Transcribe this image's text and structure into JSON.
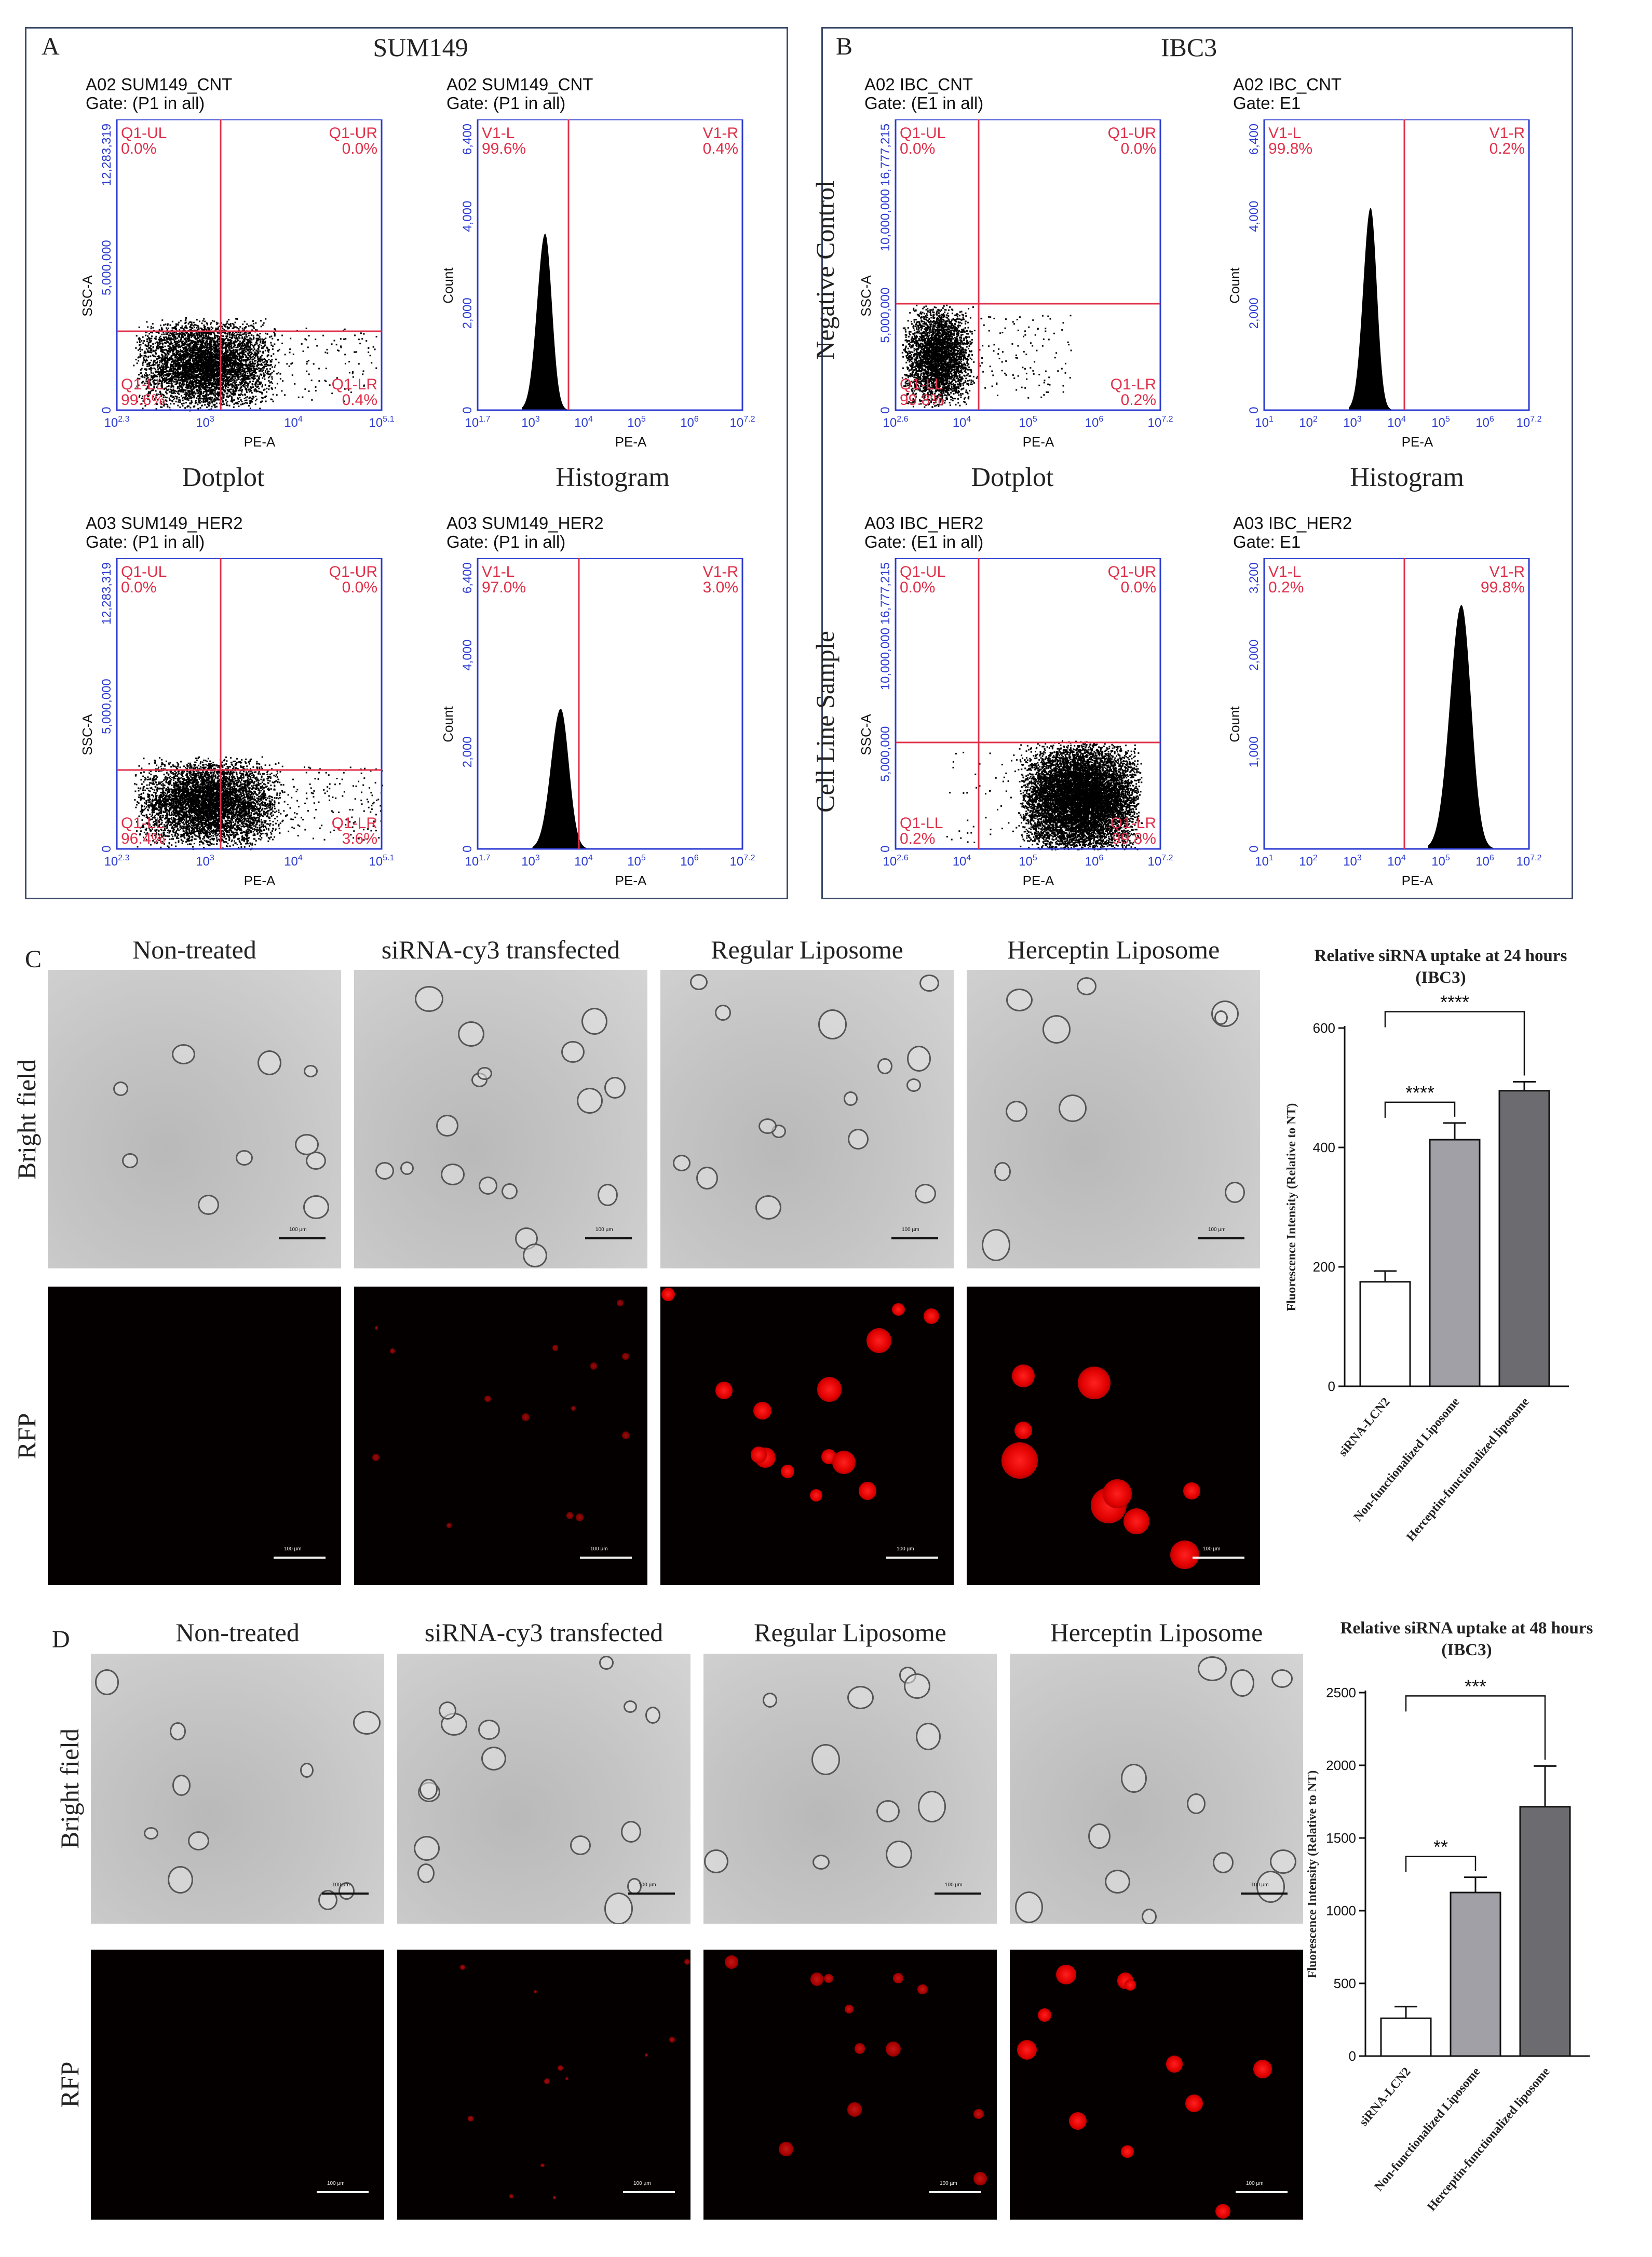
{
  "panelA": {
    "letter": "A",
    "title": "SUM149",
    "dot_top": {
      "name": "A02 SUM149_CNT",
      "gate": "Gate: (P1 in all)",
      "ylabel": "SSC-A",
      "xlabel": "PE-A",
      "yticks": [
        "0",
        "5,000,000",
        "12,283,319"
      ],
      "xticks": [
        "10^2.3",
        "10^3",
        "10^4",
        "10^5.1"
      ],
      "quads": {
        "ul": "Q1-UL",
        "ul_v": "0.0%",
        "ur": "Q1-UR",
        "ur_v": "0.0%",
        "ll": "Q1-LL",
        "ll_v": "99.6%",
        "lr": "Q1-LR",
        "lr_v": "0.4%"
      }
    },
    "hist_top": {
      "name": "A02 SUM149_CNT",
      "gate": "Gate: (P1 in all)",
      "ylabel": "Count",
      "xlabel": "PE-A",
      "yticks": [
        "0",
        "2,000",
        "4,000",
        "6,400"
      ],
      "xticks": [
        "10^1.7",
        "10^3",
        "10^4",
        "10^5",
        "10^6",
        "10^7.2"
      ],
      "left": "V1-L",
      "left_v": "99.6%",
      "right": "V1-R",
      "right_v": "0.4%"
    },
    "dot_bottom": {
      "name": "A03 SUM149_HER2",
      "gate": "Gate: (P1 in all)",
      "ylabel": "SSC-A",
      "xlabel": "PE-A",
      "yticks": [
        "0",
        "5,000,000",
        "12,283,319"
      ],
      "xticks": [
        "10^2.3",
        "10^3",
        "10^4",
        "10^5.1"
      ],
      "quads": {
        "ul": "Q1-UL",
        "ul_v": "0.0%",
        "ur": "Q1-UR",
        "ur_v": "0.0%",
        "ll": "Q1-LL",
        "ll_v": "96.4%",
        "lr": "Q1-LR",
        "lr_v": "3.6%"
      }
    },
    "hist_bottom": {
      "name": "A03 SUM149_HER2",
      "gate": "Gate: (P1 in all)",
      "ylabel": "Count",
      "xlabel": "PE-A",
      "yticks": [
        "0",
        "2,000",
        "4,000",
        "6,400"
      ],
      "xticks": [
        "10^1.7",
        "10^3",
        "10^4",
        "10^5",
        "10^6",
        "10^7.2"
      ],
      "left": "V1-L",
      "left_v": "97.0%",
      "right": "V1-R",
      "right_v": "3.0%"
    }
  },
  "panelB": {
    "letter": "B",
    "title": "IBC3",
    "row_top": "Negative Control",
    "row_bottom": "Cell Line Sample",
    "dot_top": {
      "name": "A02 IBC_CNT",
      "gate": "Gate: (E1 in all)",
      "ylabel": "SSC-A",
      "xlabel": "PE-A",
      "yticks": [
        "0",
        "5,000,000",
        "10,000,000",
        "16,777,215"
      ],
      "xticks": [
        "10^2.6",
        "10^4",
        "10^5",
        "10^6",
        "10^7.2"
      ],
      "quads": {
        "ul": "Q1-UL",
        "ul_v": "0.0%",
        "ur": "Q1-UR",
        "ur_v": "0.0%",
        "ll": "Q1-LL",
        "ll_v": "99.8%",
        "lr": "Q1-LR",
        "lr_v": "0.2%"
      }
    },
    "hist_top": {
      "name": "A02 IBC_CNT",
      "gate": "Gate: E1",
      "ylabel": "Count",
      "xlabel": "PE-A",
      "yticks": [
        "0",
        "2,000",
        "4,000",
        "6,400"
      ],
      "xticks": [
        "10^1",
        "10^2",
        "10^3",
        "10^4",
        "10^5",
        "10^6",
        "10^7.2"
      ],
      "left": "V1-L",
      "left_v": "99.8%",
      "right": "V1-R",
      "right_v": "0.2%"
    },
    "dot_bottom": {
      "name": "A03 IBC_HER2",
      "gate": "Gate: (E1 in all)",
      "ylabel": "SSC-A",
      "xlabel": "PE-A",
      "yticks": [
        "0",
        "5,000,000",
        "10,000,000",
        "16,777,215"
      ],
      "xticks": [
        "10^2.6",
        "10^4",
        "10^5",
        "10^6",
        "10^7.2"
      ],
      "quads": {
        "ul": "Q1-UL",
        "ul_v": "0.0%",
        "ur": "Q1-UR",
        "ur_v": "0.0%",
        "ll": "Q1-LL",
        "ll_v": "0.2%",
        "lr": "Q1-LR",
        "lr_v": "99.8%"
      }
    },
    "hist_bottom": {
      "name": "A03 IBC_HER2",
      "gate": "Gate: E1",
      "ylabel": "Count",
      "xlabel": "PE-A",
      "yticks": [
        "0",
        "1,000",
        "2,000",
        "3,200"
      ],
      "xticks": [
        "10^1",
        "10^2",
        "10^3",
        "10^4",
        "10^5",
        "10^6",
        "10^7.2"
      ],
      "left": "V1-L",
      "left_v": "0.2%",
      "right": "V1-R",
      "right_v": "99.8%"
    }
  },
  "captions": {
    "dotplot": "Dotplot",
    "histogram": "Histogram"
  },
  "panelC": {
    "letter": "C",
    "columns": [
      "Non-treated",
      "siRNA-cy3 transfected",
      "Regular Liposome",
      "Herceptin Liposome"
    ],
    "rows": [
      "Bright field",
      "RFP"
    ],
    "scale": "100 µm"
  },
  "panelD": {
    "letter": "D",
    "columns": [
      "Non-treated",
      "siRNA-cy3 transfected",
      "Regular Liposome",
      "Herceptin Liposome"
    ],
    "rows": [
      "Bright field",
      "RFP"
    ],
    "scale": "100 µm"
  },
  "colors": {
    "gate_line": "#e0304a",
    "axis": "#2a3ad0",
    "dots": "#000000",
    "rfp": "#ff1a1a"
  },
  "chart_data": [
    {
      "type": "bar",
      "title": "Relative siRNA uptake at 24 hours",
      "subtitle": "(IBC3)",
      "ylabel": "Fluorescence Intensity (Relative to NT)",
      "categories": [
        "siRNA-LCN2",
        "Non-functionalized Liposome",
        "Herceptin-functionalized liposome"
      ],
      "values": [
        175,
        413,
        495
      ],
      "errors": [
        18,
        28,
        15
      ],
      "ylim": [
        0,
        600
      ],
      "yticks": [
        0,
        200,
        400,
        600
      ],
      "colors": [
        "#ffffff",
        "#a0a0a6",
        "#6c6c70"
      ],
      "significance": [
        {
          "from": 0,
          "to": 1,
          "label": "****"
        },
        {
          "from": 0,
          "to": 2,
          "label": "****"
        }
      ]
    },
    {
      "type": "bar",
      "title": "Relative siRNA uptake at 48 hours",
      "subtitle": "(IBC3)",
      "ylabel": "Fluorescence Intensity (Relative to NT)",
      "categories": [
        "siRNA-LCN2",
        "Non-functionalized Liposome",
        "Herceptin-functionalized liposome"
      ],
      "values": [
        260,
        1125,
        1715
      ],
      "errors": [
        80,
        105,
        280
      ],
      "ylim": [
        0,
        2500
      ],
      "yticks": [
        0,
        500,
        1000,
        1500,
        2000,
        2500
      ],
      "colors": [
        "#ffffff",
        "#a0a0a6",
        "#6c6c70"
      ],
      "significance": [
        {
          "from": 0,
          "to": 1,
          "label": "**"
        },
        {
          "from": 0,
          "to": 2,
          "label": "***"
        }
      ]
    }
  ]
}
